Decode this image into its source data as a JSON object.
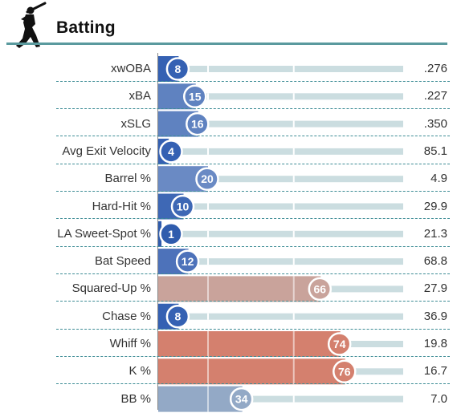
{
  "header": {
    "title": "Batting",
    "icon": "batter-silhouette-icon"
  },
  "colors": {
    "accent": "#5a9a9e",
    "track": "#cbdde0",
    "blue_strong": "#3561b3",
    "blue_mid": "#5f82c0",
    "blue_light": "#93a9c6",
    "red_strong": "#d4806e",
    "red_light": "#c9a39b"
  },
  "chart_data": {
    "type": "bar",
    "title": "Batting",
    "xlim": [
      0,
      100
    ],
    "categories": [
      "xwOBA",
      "xBA",
      "xSLG",
      "Avg Exit Velocity",
      "Barrel %",
      "Hard-Hit %",
      "LA Sweet-Spot %",
      "Bat Speed",
      "Squared-Up %",
      "Chase %",
      "Whiff %",
      "K %",
      "BB %"
    ],
    "percentiles": [
      8,
      15,
      16,
      4,
      20,
      10,
      1,
      12,
      66,
      8,
      74,
      76,
      34
    ],
    "stat_values": [
      ".276",
      ".227",
      ".350",
      "85.1",
      "4.9",
      "29.9",
      "21.3",
      "68.8",
      "27.9",
      "36.9",
      "19.8",
      "16.7",
      "7.0"
    ],
    "bar_colors": [
      "#3561b3",
      "#5f82c0",
      "#5f82c0",
      "#3561b3",
      "#6a8ac4",
      "#3e68b5",
      "#2f5cad",
      "#4d72ba",
      "#c9a39b",
      "#3561b3",
      "#d4806e",
      "#d4806e",
      "#93a9c6"
    ]
  }
}
